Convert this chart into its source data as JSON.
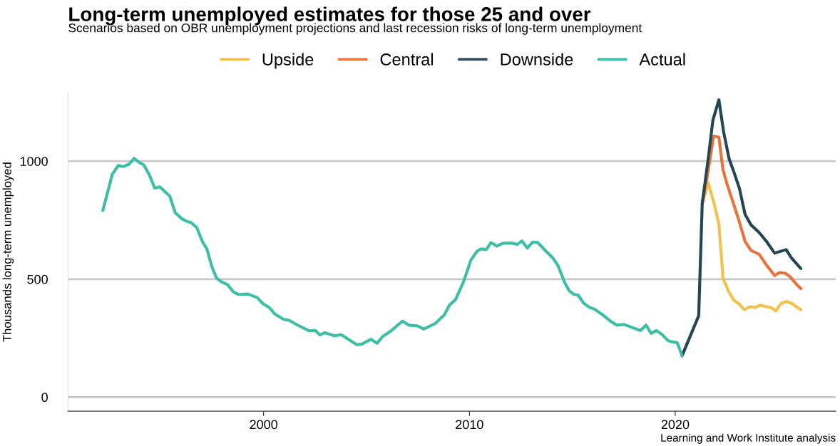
{
  "chart_data": {
    "type": "line",
    "title": "Long-term unemployed estimates for those 25 and over",
    "subtitle": "Scenarios based on OBR unemployment projections and last recession risks of long-term unemployment",
    "ylabel": "Thousands long-term unemployed",
    "annotations": [
      "Learning and Work Institute analysis"
    ],
    "legend": "top",
    "grid": "y",
    "xlim": [
      1990.5,
      2027.8
    ],
    "xticks": [
      2000,
      2010,
      2020
    ],
    "ylim": [
      -60,
      1290
    ],
    "yticks": [
      0,
      500,
      1000
    ],
    "series": [
      {
        "name": "Upside",
        "color": "#f2c14e",
        "x": [
          2021.31,
          2021.6,
          2021.89,
          2022.12,
          2022.32,
          2022.58,
          2022.85,
          2023.1,
          2023.36,
          2023.62,
          2023.89,
          2024.14,
          2024.43,
          2024.66,
          2024.89,
          2025.12,
          2025.39,
          2025.64,
          2026.1
        ],
        "values": [
          819,
          909,
          819,
          734,
          505,
          450,
          410,
          395,
          370,
          383,
          380,
          390,
          383,
          379,
          365,
          395,
          405,
          398,
          370
        ]
      },
      {
        "name": "Central",
        "color": "#e8743b",
        "x": [
          2021.31,
          2021.6,
          2021.86,
          2022.12,
          2022.32,
          2022.53,
          2022.87,
          2023.16,
          2023.39,
          2023.68,
          2024.08,
          2024.43,
          2024.83,
          2025.06,
          2025.35,
          2025.58,
          2025.87,
          2026.1
        ],
        "values": [
          819,
          960,
          1106,
          1102,
          964,
          899,
          809,
          730,
          660,
          622,
          605,
          560,
          515,
          528,
          525,
          510,
          480,
          460
        ]
      },
      {
        "name": "Downside",
        "color": "#264653",
        "x": [
          2020.33,
          2021.14,
          2021.31,
          2021.6,
          2021.83,
          2022.12,
          2022.35,
          2022.62,
          2022.87,
          2023.12,
          2023.39,
          2023.68,
          2024.08,
          2024.43,
          2024.83,
          2025.39,
          2025.64,
          2026.1
        ],
        "values": [
          175,
          345,
          819,
          1009,
          1174,
          1260,
          1124,
          1009,
          949,
          884,
          775,
          730,
          697,
          660,
          610,
          625,
          590,
          545
        ]
      },
      {
        "name": "Actual",
        "color": "#3dbfa6",
        "x": [
          1992.19,
          1992.65,
          1992.94,
          1993.17,
          1993.46,
          1993.71,
          1993.92,
          1994.18,
          1994.44,
          1994.71,
          1994.96,
          1995.19,
          1995.44,
          1995.71,
          1996.06,
          1996.29,
          1996.46,
          1996.75,
          1997.03,
          1997.24,
          1997.5,
          1997.71,
          1997.96,
          1998.25,
          1998.54,
          1998.79,
          1999.23,
          1999.69,
          1999.98,
          2000.27,
          2000.55,
          2000.96,
          2001.25,
          2001.76,
          2002.22,
          2002.52,
          2002.74,
          2002.98,
          2003.44,
          2003.78,
          2004.53,
          2004.76,
          2005.22,
          2005.51,
          2005.8,
          2006.2,
          2006.75,
          2007.05,
          2007.47,
          2007.79,
          2008.34,
          2008.78,
          2009.03,
          2009.32,
          2009.72,
          2010.07,
          2010.36,
          2010.55,
          2010.82,
          2011.05,
          2011.34,
          2011.63,
          2012.03,
          2012.32,
          2012.55,
          2012.81,
          2013.07,
          2013.32,
          2013.7,
          2014.05,
          2014.31,
          2014.63,
          2014.85,
          2015.09,
          2015.28,
          2015.55,
          2015.84,
          2016.07,
          2016.53,
          2016.88,
          2017.16,
          2017.51,
          2017.91,
          2018.31,
          2018.58,
          2018.83,
          2019.09,
          2019.35,
          2019.64,
          2019.76,
          2020.1,
          2020.33
        ],
        "values": [
          791,
          944,
          982,
          977,
          987,
          1012,
          997,
          984,
          944,
          886,
          891,
          872,
          852,
          781,
          754,
          744,
          741,
          719,
          659,
          629,
          550,
          505,
          488,
          477,
          445,
          435,
          437,
          422,
          395,
          380,
          352,
          330,
          325,
          300,
          281,
          282,
          263,
          273,
          260,
          264,
          222,
          224,
          245,
          228,
          258,
          281,
          322,
          305,
          302,
          288,
          312,
          348,
          390,
          412,
          490,
          580,
          617,
          628,
          625,
          655,
          640,
          652,
          653,
          647,
          662,
          632,
          657,
          655,
          620,
          590,
          557,
          485,
          450,
          435,
          432,
          398,
          380,
          373,
          345,
          320,
          305,
          308,
          295,
          282,
          305,
          270,
          282,
          266,
          240,
          236,
          230,
          175
        ]
      }
    ]
  }
}
